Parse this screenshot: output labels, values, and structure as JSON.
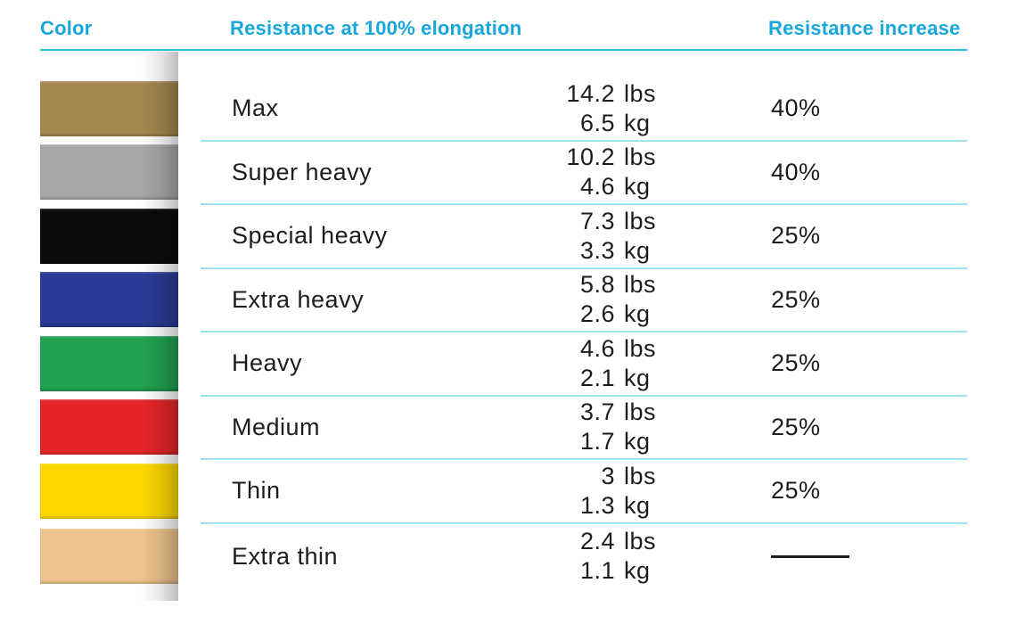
{
  "chart_data": {
    "type": "table",
    "columns": [
      "Color",
      "Resistance at 100% elongation",
      "Resistance increase"
    ],
    "rows": [
      {
        "color_name": "gold",
        "band_hex": "#a6884f",
        "label": "Max",
        "lbs_value": "14.2",
        "lbs_unit": "lbs",
        "kg_value": "6.5",
        "kg_unit": "kg",
        "increase": "40%"
      },
      {
        "color_name": "gray",
        "band_hex": "#a8a8ab",
        "label": "Super heavy",
        "lbs_value": "10.2",
        "lbs_unit": "lbs",
        "kg_value": "4.6",
        "kg_unit": "kg",
        "increase": "40%"
      },
      {
        "color_name": "black",
        "band_hex": "#0b0b0b",
        "label": "Special heavy",
        "lbs_value": "7.3",
        "lbs_unit": "lbs",
        "kg_value": "3.3",
        "kg_unit": "kg",
        "increase": "25%"
      },
      {
        "color_name": "blue",
        "band_hex": "#2b3b97",
        "label": "Extra heavy",
        "lbs_value": "5.8",
        "lbs_unit": "lbs",
        "kg_value": "2.6",
        "kg_unit": "kg",
        "increase": "25%"
      },
      {
        "color_name": "green",
        "band_hex": "#20a350",
        "label": "Heavy",
        "lbs_value": "4.6",
        "lbs_unit": "lbs",
        "kg_value": "2.1",
        "kg_unit": "kg",
        "increase": "25%"
      },
      {
        "color_name": "red",
        "band_hex": "#e52629",
        "label": "Medium",
        "lbs_value": "3.7",
        "lbs_unit": "lbs",
        "kg_value": "1.7",
        "kg_unit": "kg",
        "increase": "25%"
      },
      {
        "color_name": "yellow",
        "band_hex": "#fdd900",
        "label": "Thin",
        "lbs_value": "3",
        "lbs_unit": "lbs",
        "kg_value": "1.3",
        "kg_unit": "kg",
        "increase": "25%"
      },
      {
        "color_name": "beige",
        "band_hex": "#efc48c",
        "label": "Extra thin",
        "lbs_value": "2.4",
        "lbs_unit": "lbs",
        "kg_value": "1.1",
        "kg_unit": "kg",
        "increase": null
      }
    ],
    "title": "",
    "legend": "none",
    "grid": "horizontal cyan dividers",
    "accent_color": "#18a7dc",
    "divider_color": "#9ce2f2",
    "text_color": "#1d1d1d"
  }
}
